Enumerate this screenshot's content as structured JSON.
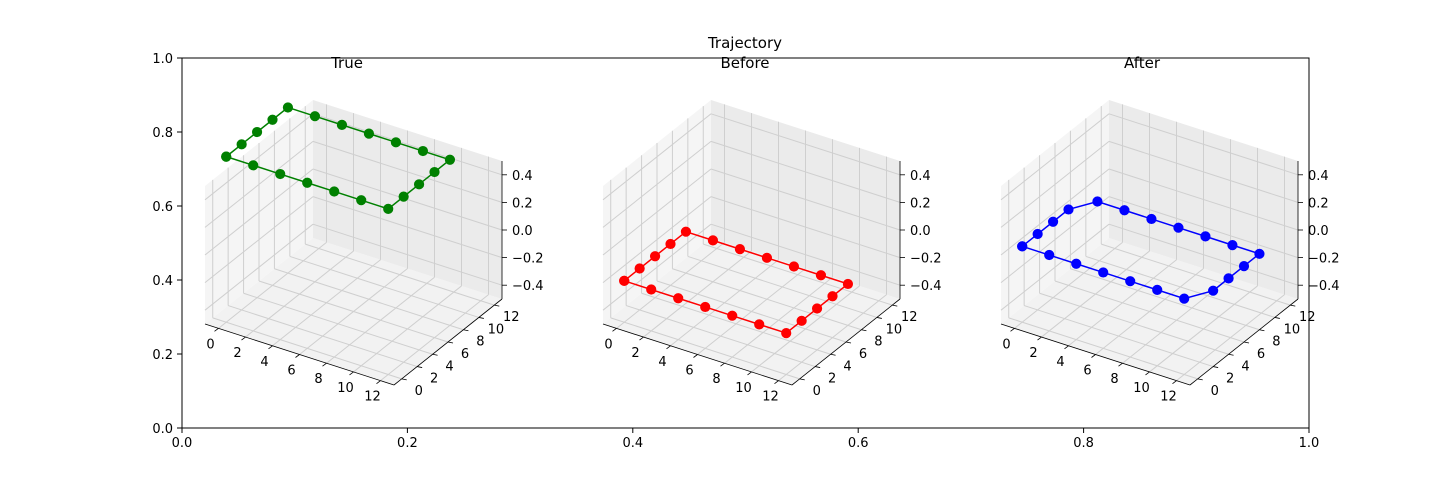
{
  "figure": {
    "title": "Trajectory"
  },
  "background_axes": {
    "x_ticks": [
      "0.0",
      "0.2",
      "0.4",
      "0.6",
      "0.8",
      "1.0"
    ],
    "x_values": [
      0.0,
      0.2,
      0.4,
      0.6,
      0.8,
      1.0
    ],
    "y_ticks": [
      "0.0",
      "0.2",
      "0.4",
      "0.6",
      "0.8",
      "1.0"
    ],
    "y_values": [
      0.0,
      0.2,
      0.4,
      0.6,
      0.8,
      1.0
    ]
  },
  "chart_data": [
    {
      "type": "scatter",
      "subtitle": "True",
      "color": "#008000",
      "projection": "3d",
      "line_and_markers": true,
      "x_ticks": [
        "0",
        "2",
        "4",
        "6",
        "8",
        "10",
        "12"
      ],
      "y_ticks": [
        "0",
        "2",
        "4",
        "6",
        "8",
        "10",
        "12"
      ],
      "z_ticks": [
        "0.4",
        "0.2",
        "0.0",
        "−0.2",
        "−0.4"
      ],
      "xlim": [
        -1,
        13
      ],
      "ylim": [
        -1,
        13
      ],
      "zlim": [
        -0.5,
        0.5
      ],
      "grid": true,
      "points_x": [
        0,
        2,
        4,
        6,
        8,
        10,
        12,
        12,
        12,
        12,
        12,
        10,
        8,
        6,
        4,
        2,
        0,
        0,
        0,
        0,
        0
      ],
      "points_y": [
        0,
        0,
        0,
        0,
        0,
        0,
        0,
        2,
        4,
        6,
        8,
        8,
        8,
        8,
        8,
        8,
        8,
        6,
        4,
        2,
        0
      ],
      "points_z": [
        0.7,
        0.7,
        0.7,
        0.7,
        0.7,
        0.7,
        0.7,
        0.7,
        0.7,
        0.7,
        0.7,
        0.7,
        0.7,
        0.7,
        0.7,
        0.7,
        0.7,
        0.7,
        0.7,
        0.7,
        0.7
      ]
    },
    {
      "type": "scatter",
      "subtitle": "Before",
      "color": "#ff0000",
      "projection": "3d",
      "line_and_markers": true,
      "x_ticks": [
        "0",
        "2",
        "4",
        "6",
        "8",
        "10",
        "12"
      ],
      "y_ticks": [
        "0",
        "2",
        "4",
        "6",
        "8",
        "10",
        "12"
      ],
      "z_ticks": [
        "0.4",
        "0.2",
        "0.0",
        "−0.2",
        "−0.4"
      ],
      "xlim": [
        -1,
        13
      ],
      "ylim": [
        -1,
        13
      ],
      "zlim": [
        -0.5,
        0.5
      ],
      "grid": true,
      "points_x": [
        0,
        2,
        4,
        6,
        8,
        10,
        12,
        12,
        12,
        12,
        12,
        10,
        8,
        6,
        4,
        2,
        0,
        0,
        0,
        0,
        0
      ],
      "points_y": [
        0,
        0,
        0,
        0,
        0,
        0,
        0,
        2,
        4,
        6,
        8,
        8,
        8,
        8,
        8,
        8,
        8,
        6,
        4,
        2,
        0
      ],
      "points_z": [
        -0.2,
        -0.2,
        -0.2,
        -0.2,
        -0.2,
        -0.2,
        -0.2,
        -0.2,
        -0.2,
        -0.2,
        -0.2,
        -0.2,
        -0.2,
        -0.2,
        -0.2,
        -0.2,
        -0.2,
        -0.2,
        -0.2,
        -0.2,
        -0.2
      ]
    },
    {
      "type": "scatter",
      "subtitle": "After",
      "color": "#0000ff",
      "projection": "3d",
      "line_and_markers": true,
      "x_ticks": [
        "0",
        "2",
        "4",
        "6",
        "8",
        "10",
        "12"
      ],
      "y_ticks": [
        "0",
        "2",
        "4",
        "6",
        "8",
        "10",
        "12"
      ],
      "z_ticks": [
        "0.4",
        "0.2",
        "0.0",
        "−0.2",
        "−0.4"
      ],
      "xlim": [
        -1,
        13
      ],
      "ylim": [
        -1,
        13
      ],
      "zlim": [
        -0.5,
        0.5
      ],
      "grid": true,
      "points_x": [
        0,
        2,
        4,
        6,
        8,
        10,
        12,
        13,
        13,
        13,
        13,
        11,
        9,
        7,
        5,
        3,
        1,
        0,
        0,
        0,
        0
      ],
      "points_y": [
        0,
        0,
        0,
        0,
        0,
        0,
        0,
        2,
        4,
        6,
        8,
        8,
        8,
        8,
        8,
        8,
        8,
        6,
        4,
        2,
        0
      ],
      "points_z": [
        0.05,
        0.05,
        0.05,
        0.05,
        0.05,
        0.05,
        0.05,
        0.05,
        0.05,
        0.05,
        0.05,
        0.05,
        0.05,
        0.05,
        0.05,
        0.05,
        0.05,
        0.05,
        0.05,
        0.05,
        0.05
      ]
    }
  ]
}
